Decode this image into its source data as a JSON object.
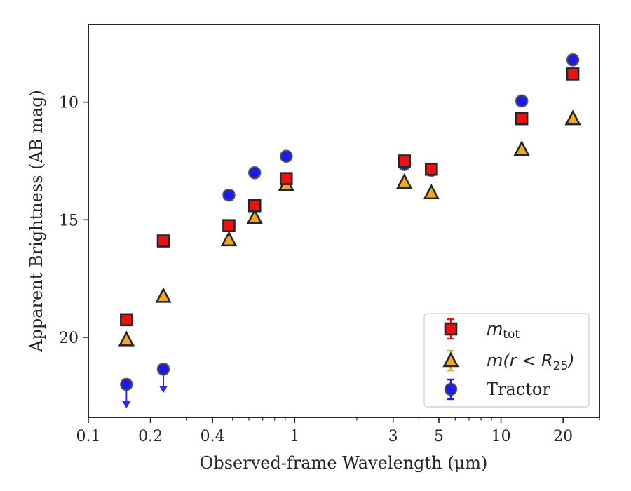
{
  "chart_data": {
    "type": "scatter",
    "title": "",
    "xlabel": "Observed-frame Wavelength (μm)",
    "ylabel": "Apparent Brightness (AB mag)",
    "xscale": "log",
    "xlim": [
      0.1,
      30
    ],
    "ylim": [
      23.4,
      6.7
    ],
    "y_inverted": true,
    "x_ticks": [
      0.1,
      0.2,
      0.4,
      1,
      3,
      5,
      10,
      20
    ],
    "x_tick_labels": [
      "0.1",
      "0.2",
      "0.4",
      "1",
      "3",
      "5",
      "10",
      "20"
    ],
    "y_ticks": [
      10,
      15,
      20
    ],
    "y_tick_labels": [
      "10",
      "15",
      "20"
    ],
    "grid": false,
    "legend_position": "lower-right",
    "series": [
      {
        "name_main": "m",
        "name_sub": "tot",
        "marker": "square",
        "color": "#ee1111",
        "x": [
          0.153,
          0.231,
          0.48,
          0.64,
          0.91,
          3.4,
          4.6,
          12.6,
          22.3
        ],
        "y": [
          19.25,
          15.9,
          15.25,
          14.4,
          13.25,
          12.5,
          12.85,
          10.7,
          8.8
        ],
        "upper_limit": [
          false,
          false,
          false,
          false,
          false,
          false,
          false,
          false,
          false
        ]
      },
      {
        "name_main": "m(r < R",
        "name_sub": "25",
        "name_end": ")",
        "marker": "triangle",
        "color": "#f5a623",
        "x": [
          0.153,
          0.231,
          0.48,
          0.64,
          0.91,
          3.4,
          4.6,
          12.6,
          22.3
        ],
        "y": [
          20.1,
          18.25,
          15.85,
          14.9,
          13.5,
          13.4,
          13.85,
          12.0,
          10.7
        ],
        "upper_limit": [
          false,
          false,
          false,
          false,
          false,
          false,
          false,
          false,
          false
        ]
      },
      {
        "name": "Tractor",
        "marker": "circle",
        "color": "#1a1aee",
        "x": [
          0.153,
          0.231,
          0.48,
          0.64,
          0.91,
          3.4,
          4.6,
          12.6,
          22.3
        ],
        "y": [
          22.0,
          21.35,
          13.95,
          13.0,
          12.3,
          12.65,
          12.9,
          9.95,
          8.2
        ],
        "upper_limit": [
          true,
          true,
          false,
          false,
          false,
          false,
          false,
          false,
          false
        ]
      }
    ]
  }
}
